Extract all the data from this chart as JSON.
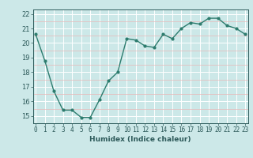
{
  "x": [
    0,
    1,
    2,
    3,
    4,
    5,
    6,
    7,
    8,
    9,
    10,
    11,
    12,
    13,
    14,
    15,
    16,
    17,
    18,
    19,
    20,
    21,
    22,
    23
  ],
  "y": [
    20.6,
    18.8,
    16.7,
    15.4,
    15.4,
    14.9,
    14.9,
    16.1,
    17.4,
    18.0,
    20.3,
    20.2,
    19.8,
    19.7,
    20.6,
    20.3,
    21.0,
    21.4,
    21.3,
    21.7,
    21.7,
    21.2,
    21.0,
    20.6
  ],
  "xlabel": "Humidex (Indice chaleur)",
  "line_color": "#2d7c6e",
  "bg_color": "#cce8e8",
  "grid_major_color": "#ffffff",
  "grid_minor_color": "#e8b8b8",
  "tick_label_color": "#2d5a5a",
  "spine_color": "#2d5a5a",
  "ylim": [
    14.5,
    22.3
  ],
  "yticks": [
    15,
    16,
    17,
    18,
    19,
    20,
    21,
    22
  ],
  "xticks": [
    0,
    1,
    2,
    3,
    4,
    5,
    6,
    7,
    8,
    9,
    10,
    11,
    12,
    13,
    14,
    15,
    16,
    17,
    18,
    19,
    20,
    21,
    22,
    23
  ],
  "xtick_labels": [
    "0",
    "1",
    "2",
    "3",
    "4",
    "5",
    "6",
    "7",
    "8",
    "9",
    "10",
    "11",
    "12",
    "13",
    "14",
    "15",
    "16",
    "17",
    "18",
    "19",
    "20",
    "21",
    "22",
    "23"
  ],
  "xlim": [
    -0.3,
    23.3
  ],
  "xlabel_fontsize": 6.5,
  "tick_fontsize": 5.5,
  "ytick_fontsize": 6.0
}
